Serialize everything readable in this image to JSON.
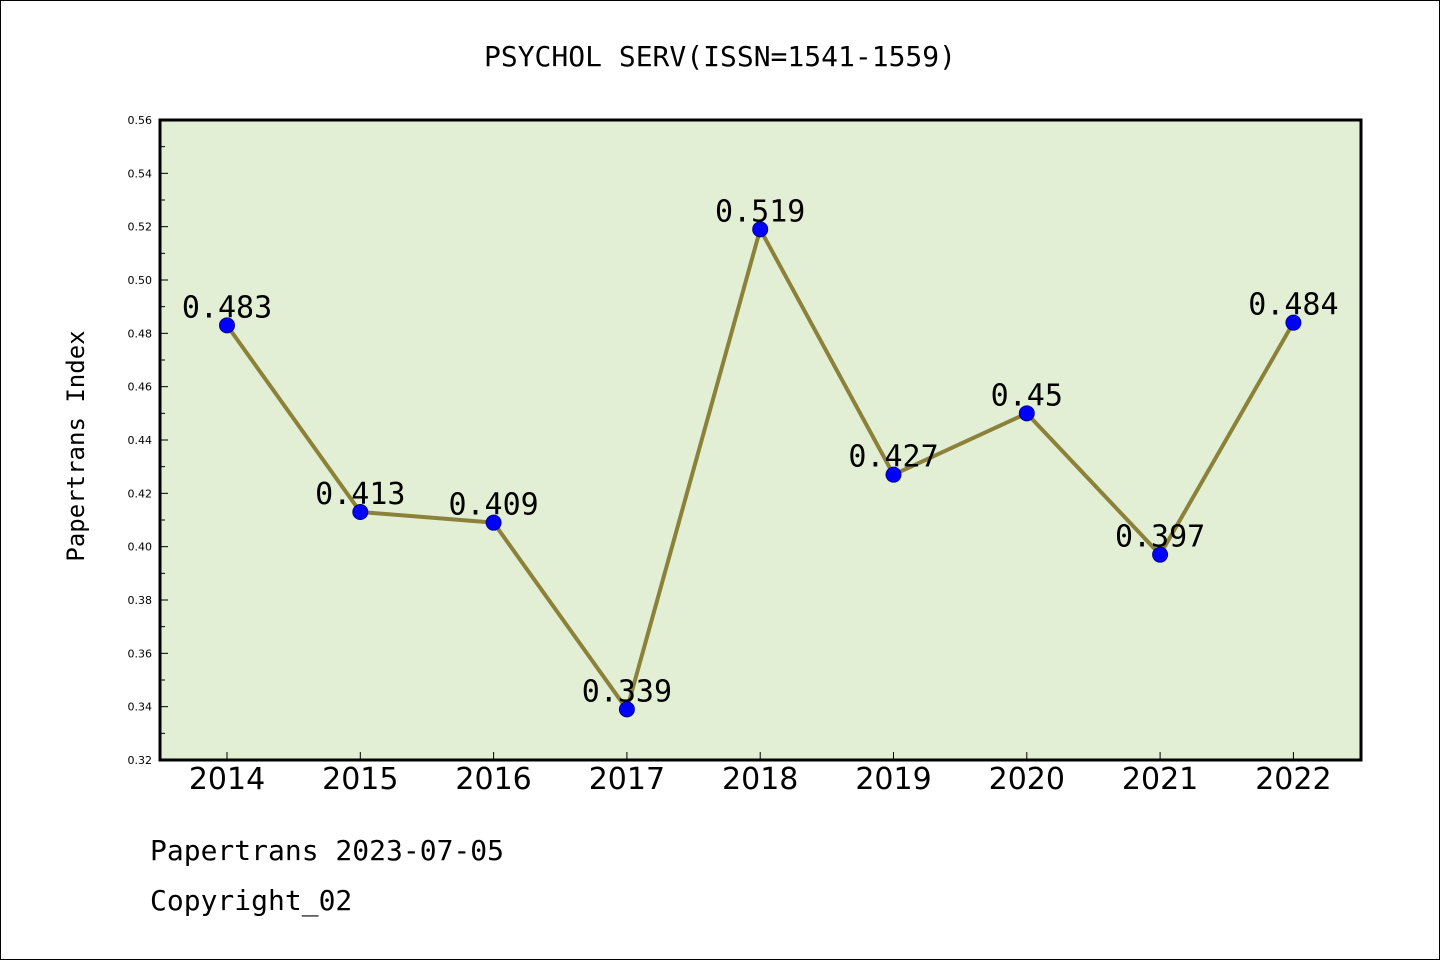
{
  "chart_data": {
    "type": "line",
    "title": "PSYCHOL SERV(ISSN=1541-1559)",
    "xlabel": "",
    "ylabel": "Papertrans Index",
    "categories": [
      "2014",
      "2015",
      "2016",
      "2017",
      "2018",
      "2019",
      "2020",
      "2021",
      "2022"
    ],
    "series": [
      {
        "values": [
          0.483,
          0.413,
          0.409,
          0.339,
          0.519,
          0.427,
          0.45,
          0.397,
          0.484
        ],
        "data_labels": [
          "0.483",
          "0.413",
          "0.409",
          "0.339",
          "0.519",
          "0.427",
          "0.45",
          "0.397",
          "0.484"
        ]
      }
    ],
    "ylim": [
      0.32,
      0.56
    ],
    "yticks": [
      "0.32",
      "0.34",
      "0.36",
      "0.38",
      "0.40",
      "0.42",
      "0.44",
      "0.46",
      "0.48",
      "0.50",
      "0.52",
      "0.54",
      "0.56"
    ],
    "grid": false,
    "legend": "none",
    "colors": {
      "plot_background": "#e2efd5",
      "line": "#8b8139",
      "marker": "#0000ff",
      "axes": "#000000"
    }
  },
  "footer": {
    "line1": "Papertrans 2023-07-05",
    "line2": "Copyright_02"
  }
}
